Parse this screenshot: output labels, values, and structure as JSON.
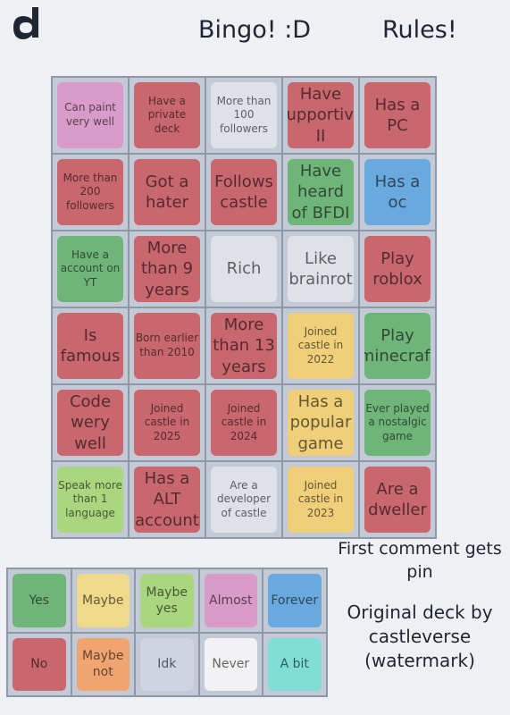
{
  "header": {
    "title": "Bingo! :D",
    "rules": "Rules!"
  },
  "grid": {
    "rows": [
      [
        {
          "text": "Can paint very well",
          "color": "#d99bc9"
        },
        {
          "text": "Have a private deck",
          "color": "#c9676e"
        },
        {
          "text": "More than 100 followers",
          "color": "#dfe1e8"
        },
        {
          "text": "Have supportive II",
          "color": "#c9676e"
        },
        {
          "text": "Has a PC",
          "color": "#c9676e"
        }
      ],
      [
        {
          "text": "More than 200 followers",
          "color": "#c9676e"
        },
        {
          "text": "Got a hater",
          "color": "#c9676e"
        },
        {
          "text": "Follows castle",
          "color": "#c9676e"
        },
        {
          "text": "Have heard of BFDI",
          "color": "#6fb57a"
        },
        {
          "text": "Has a oc",
          "color": "#6aa9dd"
        }
      ],
      [
        {
          "text": "Have a account on YT",
          "color": "#6fb57a"
        },
        {
          "text": "More than 9 years",
          "color": "#c9676e"
        },
        {
          "text": "Rich",
          "color": "#dfe1e8"
        },
        {
          "text": "Like brainrot",
          "color": "#dfe1e8"
        },
        {
          "text": "Play roblox",
          "color": "#c9676e"
        }
      ],
      [
        {
          "text": "Is famous",
          "color": "#c9676e"
        },
        {
          "text": "Born earlier than 2010",
          "color": "#c9676e"
        },
        {
          "text": "More than 13 years",
          "color": "#c9676e"
        },
        {
          "text": "Joined castle in 2022",
          "color": "#efcf7a"
        },
        {
          "text": "Play minecraft",
          "color": "#6fb57a"
        }
      ],
      [
        {
          "text": "Code wery well",
          "color": "#c9676e"
        },
        {
          "text": "Joined castle in 2025",
          "color": "#c9676e"
        },
        {
          "text": "Joined castle in 2024",
          "color": "#c9676e"
        },
        {
          "text": "Has a popular game",
          "color": "#efcf7a"
        },
        {
          "text": "Ever played a nostalgic game",
          "color": "#6fb57a"
        }
      ],
      [
        {
          "text": "Speak more than 1 language",
          "color": "#a9d67e"
        },
        {
          "text": "Has a ALT account",
          "color": "#c9676e"
        },
        {
          "text": "Are a developer of castle",
          "color": "#dfe1e8"
        },
        {
          "text": "Joined castle in 2023",
          "color": "#efcf7a"
        },
        {
          "text": "Are a dweller",
          "color": "#c9676e"
        }
      ]
    ]
  },
  "legend": {
    "rows": [
      [
        {
          "text": "Yes",
          "color": "#6fb57a"
        },
        {
          "text": "Maybe",
          "color": "#efd98a"
        },
        {
          "text": "Maybe yes",
          "color": "#a9d67e"
        },
        {
          "text": "Almost",
          "color": "#d99bc9"
        },
        {
          "text": "Forever",
          "color": "#6aa9dd"
        }
      ],
      [
        {
          "text": "No",
          "color": "#c9676e"
        },
        {
          "text": "Maybe not",
          "color": "#f0a46f"
        },
        {
          "text": "Idk",
          "color": "#cfd4e2"
        },
        {
          "text": "Never",
          "color": "#f2f2f4"
        },
        {
          "text": "A bit",
          "color": "#7fded6"
        }
      ]
    ]
  },
  "notes": {
    "pin": "First comment gets pin",
    "credit": "Original deck by castleverse (watermark)"
  }
}
